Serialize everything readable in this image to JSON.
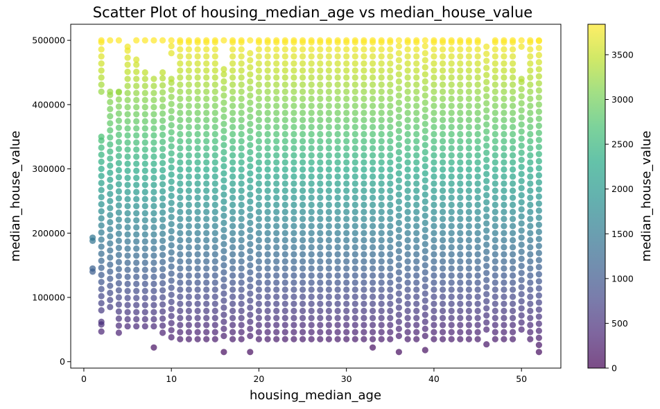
{
  "chart_data": {
    "type": "scatter",
    "title": "Scatter Plot of housing_median_age vs median_house_value",
    "xlabel": "housing_median_age",
    "ylabel": "median_house_value",
    "xlim": [
      -1.5,
      54.5
    ],
    "ylim": [
      -10000,
      525000
    ],
    "x_ticks": [
      0,
      10,
      20,
      30,
      40,
      50
    ],
    "x_tick_labels": [
      "0",
      "10",
      "20",
      "30",
      "40",
      "50"
    ],
    "y_ticks": [
      0,
      100000,
      200000,
      300000,
      400000,
      500000
    ],
    "y_tick_labels": [
      "0",
      "100000",
      "200000",
      "300000",
      "400000",
      "500000"
    ],
    "grid": false,
    "colormap": "viridis",
    "colorbar": {
      "label": "median_house_value",
      "range": [
        0,
        3840
      ],
      "ticks": [
        0,
        500,
        1000,
        1500,
        2000,
        2500,
        3000,
        3500
      ],
      "tick_labels": [
        "0",
        "500",
        "1000",
        "1500",
        "2000",
        "2500",
        "3000",
        "3500"
      ]
    },
    "marker_alpha": 0.7,
    "series": [
      {
        "x_range": [
          1,
          52
        ],
        "bands": [
          {
            "x": 1,
            "y": [
              [
                140000,
                145000
              ],
              [
                188000,
                193000
              ]
            ]
          },
          {
            "x": 2,
            "y": [
              [
                47000,
                62000
              ],
              [
                80000,
                350000
              ],
              [
                420000,
                500000
              ]
            ]
          },
          {
            "x": 3,
            "y": [
              [
                85000,
                420000
              ],
              [
                500000,
                500000
              ]
            ]
          },
          {
            "x": 4,
            "y": [
              [
                45000,
                420000
              ],
              [
                500000,
                500000
              ]
            ]
          },
          {
            "x": 5,
            "y": [
              [
                55000,
                490000
              ]
            ]
          },
          {
            "x": 6,
            "y": [
              [
                55000,
                470000
              ],
              [
                500000,
                500000
              ]
            ]
          },
          {
            "x": 7,
            "y": [
              [
                55000,
                450000
              ],
              [
                500000,
                500000
              ]
            ]
          },
          {
            "x": 8,
            "y": [
              [
                22000,
                22000
              ],
              [
                55000,
                440000
              ],
              [
                500000,
                500000
              ]
            ]
          },
          {
            "x": 9,
            "y": [
              [
                45000,
                450000
              ],
              [
                500000,
                500000
              ]
            ]
          },
          {
            "x": 10,
            "y": [
              [
                38000,
                440000
              ],
              [
                480000,
                500000
              ]
            ]
          },
          {
            "x": 16,
            "y": [
              [
                15000,
                15000
              ],
              [
                40000,
                455000
              ],
              [
                500000,
                500000
              ]
            ]
          },
          {
            "x": 19,
            "y": [
              [
                15000,
                15000
              ],
              [
                40000,
                480000
              ],
              [
                500000,
                500000
              ]
            ]
          },
          {
            "x": 33,
            "y": [
              [
                22000,
                22000
              ],
              [
                35000,
                500000
              ]
            ]
          },
          {
            "x": 36,
            "y": [
              [
                15000,
                15000
              ],
              [
                40000,
                500000
              ]
            ]
          },
          {
            "x": 39,
            "y": [
              [
                18000,
                18000
              ],
              [
                40000,
                500000
              ]
            ]
          },
          {
            "x": 46,
            "y": [
              [
                27000,
                27000
              ],
              [
                50000,
                490000
              ]
            ]
          },
          {
            "x": 50,
            "y": [
              [
                50000,
                440000
              ],
              [
                490000,
                500000
              ]
            ]
          },
          {
            "x": 52,
            "y": [
              [
                15000,
                500000
              ]
            ]
          }
        ],
        "default_band": [
          35000,
          500000
        ],
        "cap_value": 500001
      }
    ]
  }
}
